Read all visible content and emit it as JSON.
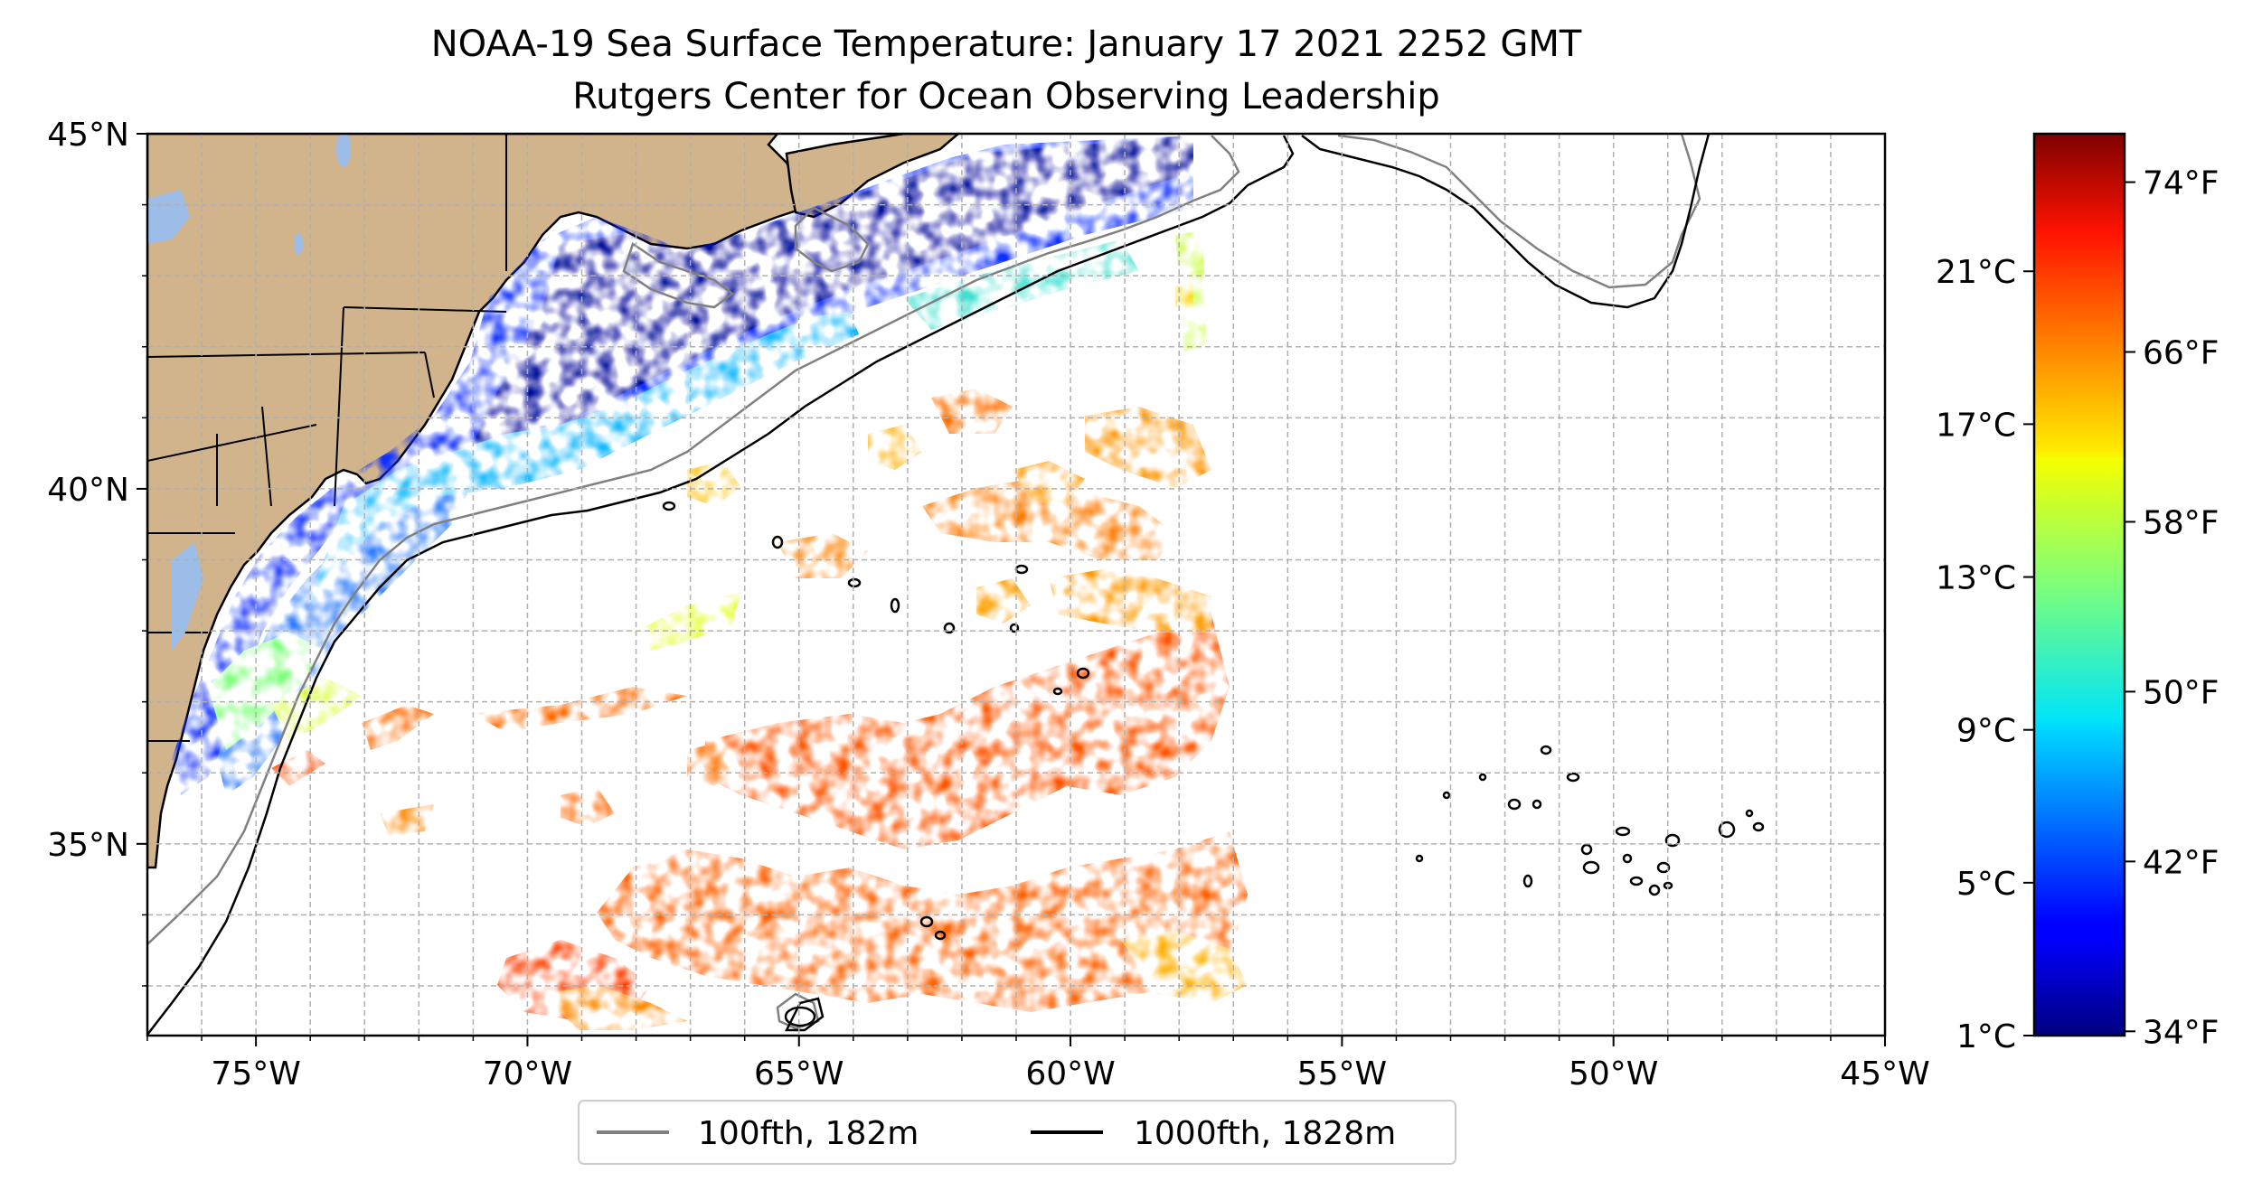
{
  "title": {
    "line1": "NOAA-19 Sea Surface Temperature: January 17 2021 2252 GMT",
    "line2": "Rutgers Center for Ocean Observing Leadership"
  },
  "map": {
    "lon_range": [
      -77,
      -45
    ],
    "lat_range": [
      32.3,
      45
    ],
    "lon_ticks": [
      {
        "value": -75,
        "label": "75°W"
      },
      {
        "value": -70,
        "label": "70°W"
      },
      {
        "value": -65,
        "label": "65°W"
      },
      {
        "value": -60,
        "label": "60°W"
      },
      {
        "value": -55,
        "label": "55°W"
      },
      {
        "value": -50,
        "label": "50°W"
      },
      {
        "value": -45,
        "label": "45°W"
      }
    ],
    "lat_ticks": [
      {
        "value": 45,
        "label": "45°N"
      },
      {
        "value": 40,
        "label": "40°N"
      },
      {
        "value": 35,
        "label": "35°N"
      }
    ],
    "grid": true,
    "land_color": "#d2b48c",
    "water_feature_color": "#9bbde8"
  },
  "colorbar": {
    "colormap": "jet",
    "range_c": [
      1,
      24.6
    ],
    "celsius_ticks": [
      {
        "value": 1,
        "label": "1°C"
      },
      {
        "value": 5,
        "label": "5°C"
      },
      {
        "value": 9,
        "label": "9°C"
      },
      {
        "value": 13,
        "label": "13°C"
      },
      {
        "value": 17,
        "label": "17°C"
      },
      {
        "value": 21,
        "label": "21°C"
      }
    ],
    "fahrenheit_ticks": [
      {
        "value": 34,
        "label": "34°F"
      },
      {
        "value": 42,
        "label": "42°F"
      },
      {
        "value": 50,
        "label": "50°F"
      },
      {
        "value": 58,
        "label": "58°F"
      },
      {
        "value": 66,
        "label": "66°F"
      },
      {
        "value": 74,
        "label": "74°F"
      }
    ]
  },
  "legend": {
    "placement": "bottom-center",
    "entries": [
      {
        "label": "100fth, 182m",
        "color": "#808080"
      },
      {
        "label": "1000fth, 1828m",
        "color": "#000000"
      }
    ]
  }
}
